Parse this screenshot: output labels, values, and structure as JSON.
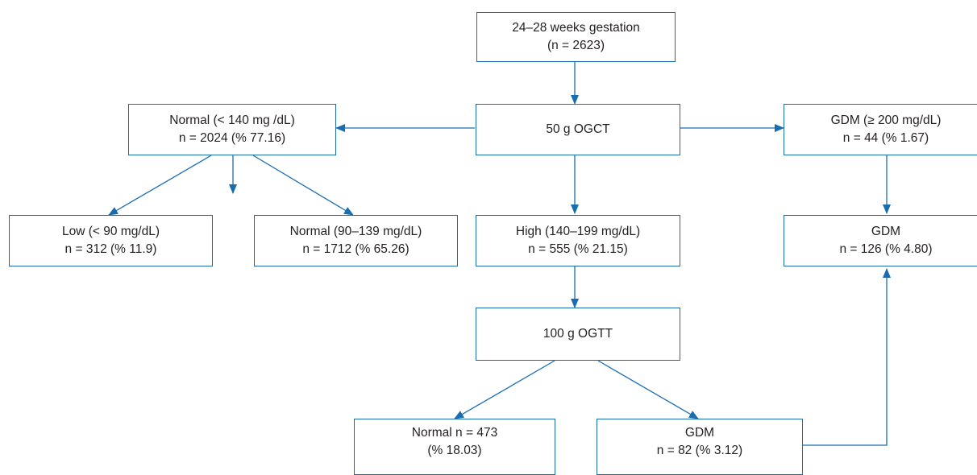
{
  "flowchart": {
    "start": {
      "line1": "24–28 weeks gestation",
      "line2": "(n = 2623)"
    },
    "ogct": {
      "line1": "50 g OGCT"
    },
    "normal_ogct": {
      "line1": "Normal (< 140 mg /dL)",
      "line2": "n = 2024 (% 77.16)"
    },
    "gdm_ogct": {
      "line1": "GDM (≥ 200 mg/dL)",
      "line2": "n = 44 (% 1.67)"
    },
    "low": {
      "line1": "Low (< 90 mg/dL)",
      "line2": "n = 312 (% 11.9)"
    },
    "normal_range": {
      "line1": "Normal (90–139 mg/dL)",
      "line2": "n = 1712 (% 65.26)"
    },
    "high": {
      "line1": "High (140–199 mg/dL)",
      "line2": "n = 555 (% 21.15)"
    },
    "gdm_total": {
      "line1": "GDM",
      "line2": "n = 126 (% 4.80)"
    },
    "ogtt": {
      "line1": "100 g OGTT"
    },
    "ogtt_normal": {
      "line1": "Normal n = 473",
      "line2": "(% 18.03)"
    },
    "ogtt_gdm": {
      "line1": "GDM",
      "line2": "n = 82 (% 3.12)"
    }
  },
  "colors": {
    "line": "#1a6cb1",
    "box_border": "#1a6cb1",
    "text": "#231f20"
  }
}
